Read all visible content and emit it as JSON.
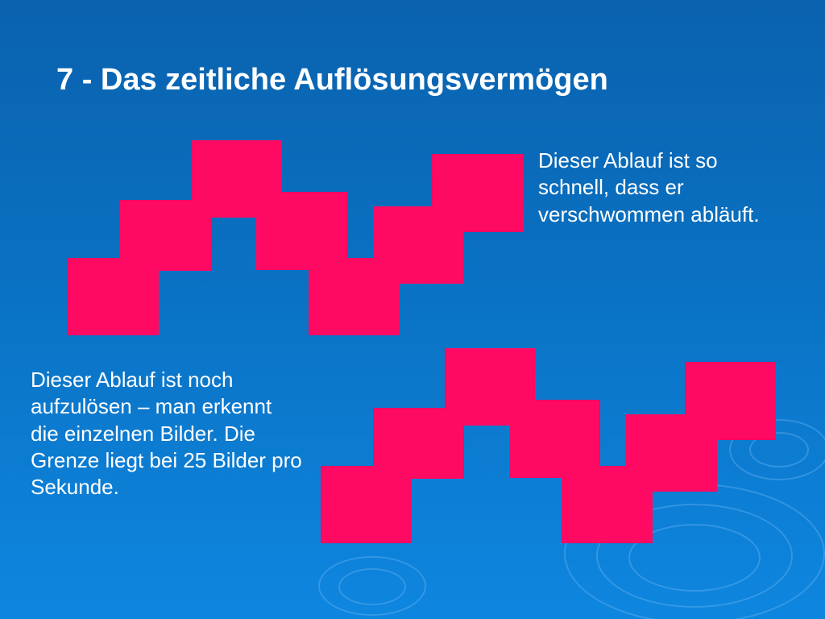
{
  "slide": {
    "title": "7 - Das zeitliche Auflösungsvermögen",
    "caption_fast": "Dieser Ablauf ist so schnell, dass er verschwommen abläuft.",
    "caption_slow": "Dieser Ablauf ist noch aufzulösen – man erkennt die einzelnen Bilder. Die Grenze liegt bei 25 Bilder pro Sekunde."
  },
  "colors": {
    "background_top": "#0a62ae",
    "background_bottom": "#0e86df",
    "block_fill": "#ff0a63",
    "text": "#ffffff"
  }
}
